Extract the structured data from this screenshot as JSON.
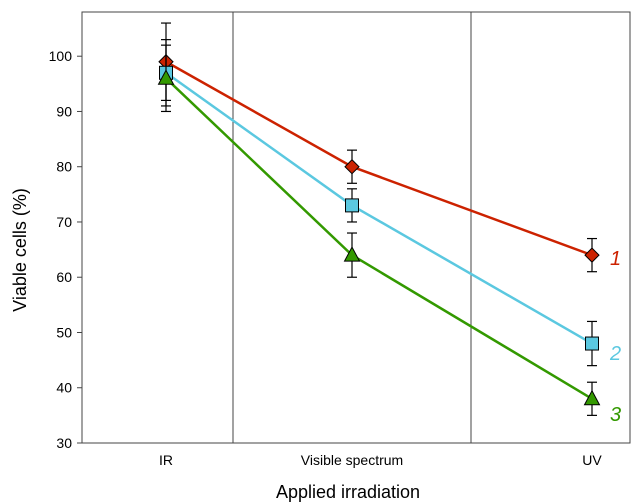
{
  "chart_data": {
    "type": "line",
    "title": "",
    "xlabel": "Applied irradiation",
    "ylabel": "Viable cells (%)",
    "categories": [
      "IR",
      "Visible spectrum",
      "UV"
    ],
    "ylim": [
      30,
      108
    ],
    "yticks": [
      30,
      40,
      50,
      60,
      70,
      80,
      90,
      100
    ],
    "grid": "vertical separators between categories",
    "series": [
      {
        "name": "1",
        "color": "#cc2200",
        "marker": "diamond",
        "values": [
          99,
          80,
          64
        ],
        "errors": [
          7,
          3,
          3
        ]
      },
      {
        "name": "2",
        "color": "#5bc8e0",
        "marker": "square",
        "values": [
          97,
          73,
          48
        ],
        "errors": [
          6,
          3,
          4
        ]
      },
      {
        "name": "3",
        "color": "#339900",
        "marker": "triangle",
        "values": [
          96,
          64,
          38
        ],
        "errors": [
          6,
          4,
          3
        ]
      }
    ]
  }
}
